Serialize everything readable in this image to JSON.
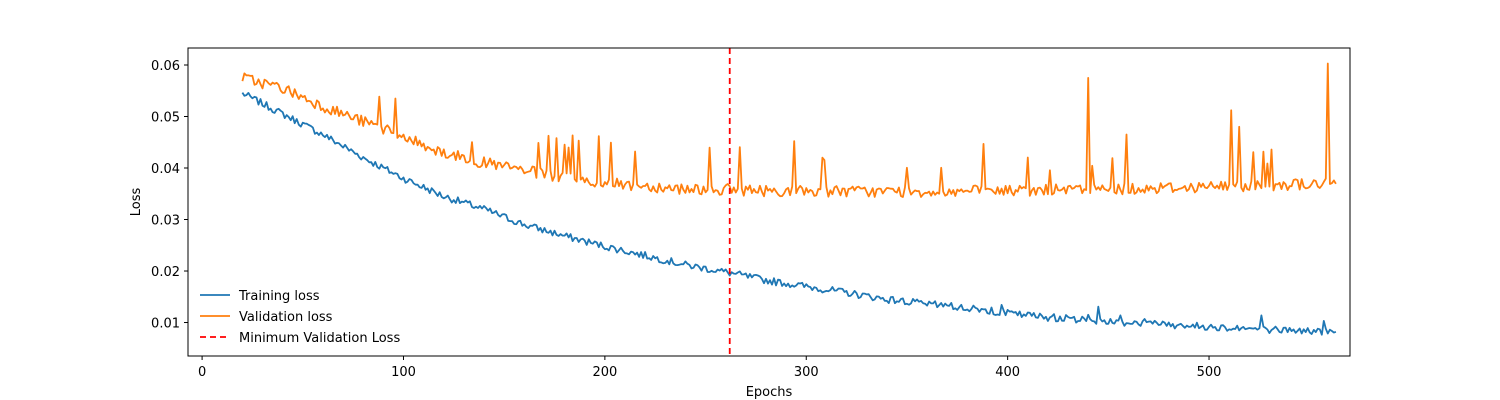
{
  "chart_data": {
    "type": "line",
    "title": "",
    "xlabel": "Epochs",
    "ylabel": "Loss",
    "xlim": [
      -7,
      570
    ],
    "ylim": [
      0.0035,
      0.0633
    ],
    "xticks": [
      0,
      100,
      200,
      300,
      400,
      500
    ],
    "yticks": [
      0.01,
      0.02,
      0.03,
      0.04,
      0.05,
      0.06
    ],
    "xtick_labels": [
      "0",
      "100",
      "200",
      "300",
      "400",
      "500"
    ],
    "ytick_labels": [
      "0.01",
      "0.02",
      "0.03",
      "0.04",
      "0.05",
      "0.06"
    ],
    "grid": false,
    "legend_position": "lower-left",
    "legend_frame": false,
    "series": [
      {
        "name": "Training loss",
        "color": "#1f77b4",
        "style": "solid",
        "x_start": 20,
        "x_step": 20,
        "values": [
          0.0545,
          0.0505,
          0.0465,
          0.042,
          0.038,
          0.0345,
          0.032,
          0.029,
          0.0268,
          0.0248,
          0.023,
          0.0212,
          0.0198,
          0.0182,
          0.017,
          0.0158,
          0.0145,
          0.0136,
          0.0128,
          0.0118,
          0.011,
          0.0105,
          0.01,
          0.0096,
          0.0092,
          0.0088,
          0.0085,
          0.0082,
          0.0078
        ]
      },
      {
        "name": "Validation loss",
        "color": "#ff7f0e",
        "style": "solid",
        "x_start": 20,
        "x_step": 20,
        "values": [
          0.0575,
          0.0555,
          0.052,
          0.049,
          0.046,
          0.043,
          0.041,
          0.0395,
          0.038,
          0.037,
          0.0365,
          0.036,
          0.0358,
          0.0356,
          0.0355,
          0.0355,
          0.0354,
          0.0354,
          0.0355,
          0.0356,
          0.0357,
          0.0358,
          0.036,
          0.0362,
          0.0364,
          0.0366,
          0.0368,
          0.037,
          0.0372
        ]
      }
    ],
    "vlines": [
      {
        "name": "Minimum Validation Loss",
        "x": 262,
        "color": "#ff0000",
        "style": "dashed"
      }
    ]
  }
}
